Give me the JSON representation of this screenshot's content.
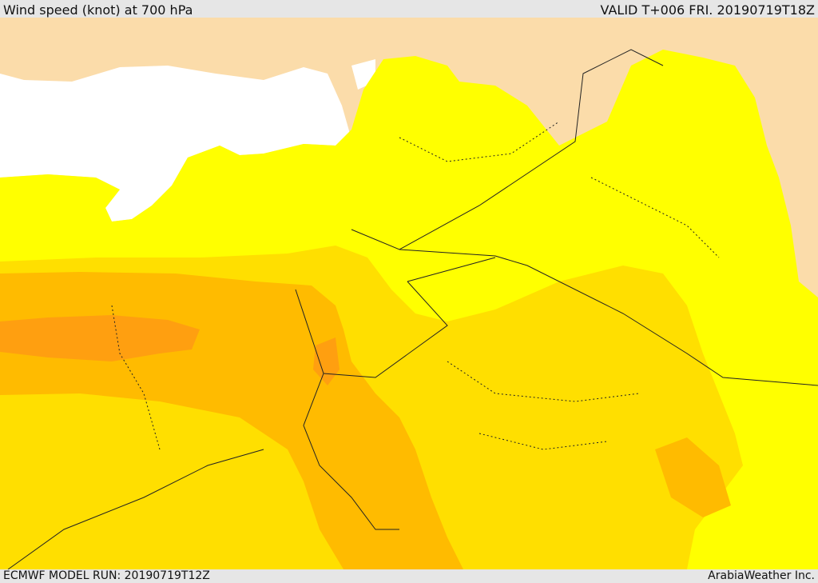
{
  "header": {
    "title": "Wind speed (knot) at 700 hPa",
    "valid_time": "VALID T+006 FRI. 20190719T18Z"
  },
  "footer": {
    "model_run": "ECMWF MODEL RUN: 20190719T12Z",
    "credit": "ArabiaWeather Inc."
  },
  "map": {
    "colors": {
      "land": "#fbdcaa",
      "sea": "#ffffff",
      "band_light_yellow": "#ffff00",
      "band_yellow": "#ffdf00",
      "band_gold": "#ffbb00",
      "band_orange": "#ff9f10",
      "boundary": "#222222"
    }
  }
}
